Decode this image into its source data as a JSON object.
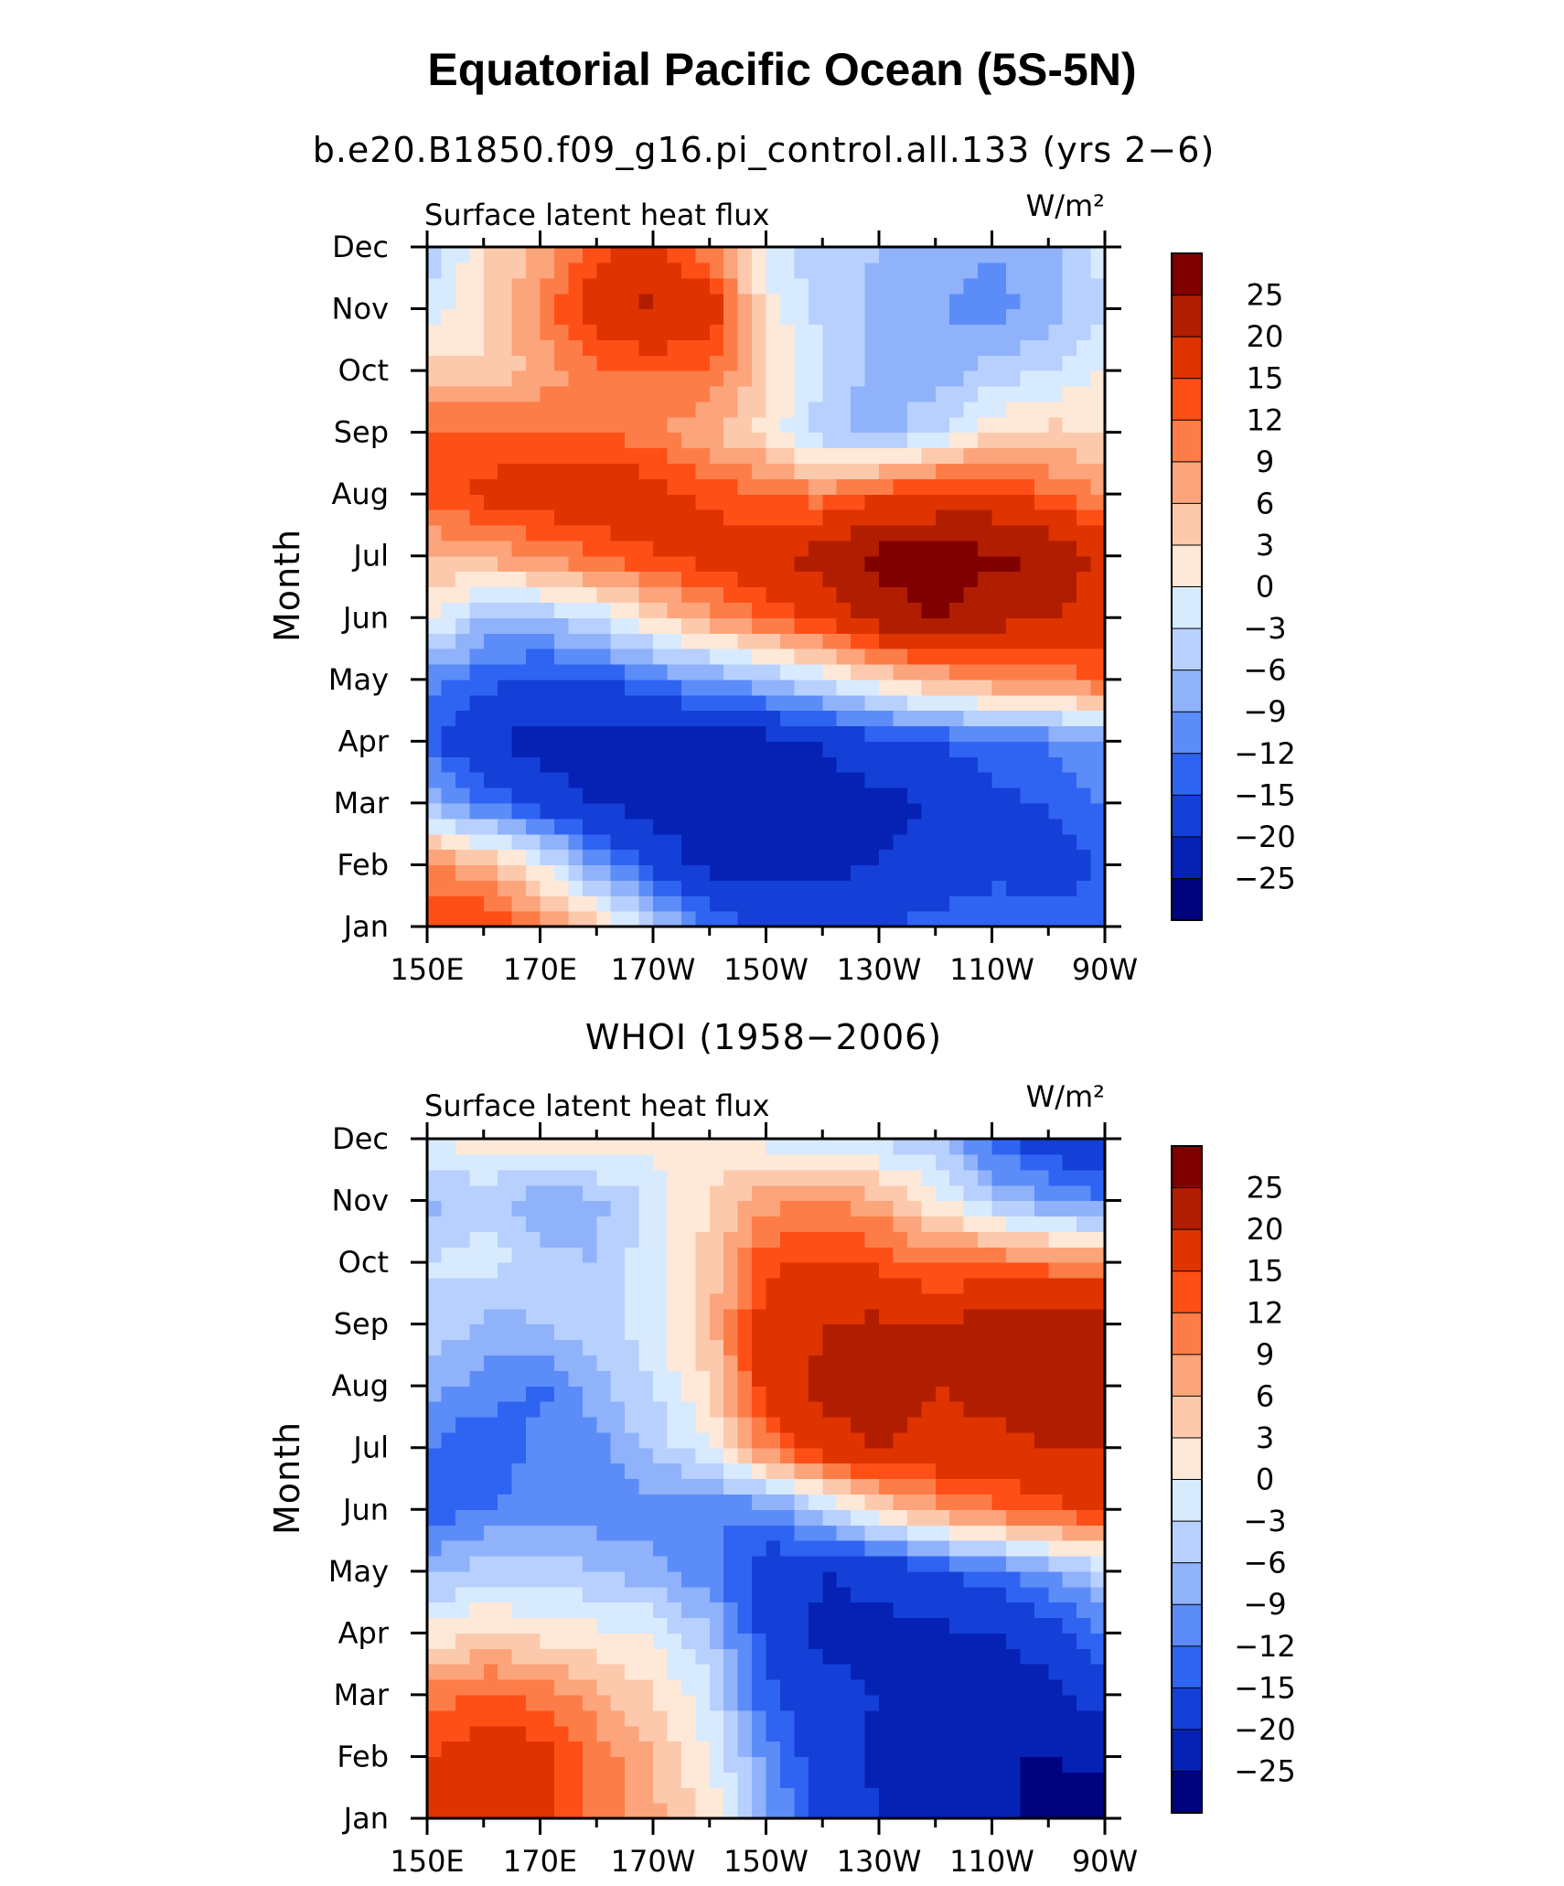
{
  "figure": {
    "title": "Equatorial Pacific Ocean (5S-5N)"
  },
  "colorbar": {
    "levels": [
      "25",
      "20",
      "15",
      "12",
      "9",
      "6",
      "3",
      "0",
      "−3",
      "−6",
      "−9",
      "−12",
      "−15",
      "−20",
      "−25"
    ],
    "colors": [
      "#800000",
      "#b11d00",
      "#df3300",
      "#fe4f17",
      "#fd7d48",
      "#fca47b",
      "#fdc9ac",
      "#fee8d8",
      "#d8eafd",
      "#b8d0fe",
      "#8fb2fb",
      "#5c8cf8",
      "#2f64f2",
      "#1440d8",
      "#0622b4",
      "#00037e"
    ]
  },
  "chart_data": [
    {
      "type": "heatmap",
      "title": "b.e20.B1850.f09_g16.pi_control.all.133 (yrs 2−6)",
      "variable": "Surface latent heat flux",
      "units": "W/m²",
      "ylabel": "Month",
      "x_ticks": [
        "150E",
        "170E",
        "170W",
        "150W",
        "130W",
        "110W",
        "90W"
      ],
      "y_ticks": [
        "Jan",
        "Feb",
        "Mar",
        "Apr",
        "May",
        "Jun",
        "Jul",
        "Aug",
        "Sep",
        "Oct",
        "Nov",
        "Dec"
      ],
      "x_lon": [
        150,
        160,
        170,
        180,
        190,
        200,
        210,
        220,
        230,
        240,
        250,
        260,
        270
      ],
      "y_month": [
        "Jan",
        "Feb",
        "Mar",
        "Apr",
        "May",
        "Jun",
        "Jul",
        "Aug",
        "Sep",
        "Oct",
        "Nov",
        "Dec"
      ],
      "values": [
        [
          14,
          16,
          10,
          4,
          -4,
          -12,
          -16,
          -18,
          -15,
          -14,
          -13,
          -14,
          -12
        ],
        [
          10,
          6,
          0,
          -9,
          -16,
          -22,
          -22,
          -21,
          -20,
          -18,
          -16,
          -17,
          -15
        ],
        [
          -6,
          -12,
          -17,
          -20,
          -22,
          -24,
          -24,
          -22,
          -21,
          -20,
          -16,
          -15,
          -12
        ],
        [
          -14,
          -20,
          -22,
          -23,
          -23,
          -23,
          -22,
          -20,
          -17,
          -15,
          -13,
          -12,
          -9
        ],
        [
          -10,
          -14,
          -16,
          -15,
          -12,
          -9,
          -6,
          -2,
          3,
          6,
          9,
          10,
          12
        ],
        [
          2,
          -6,
          -6,
          -3,
          3,
          8,
          12,
          16,
          22,
          26,
          22,
          20,
          18
        ],
        [
          5,
          7,
          9,
          12,
          15,
          17,
          19,
          22,
          27,
          27,
          26,
          25,
          18
        ],
        [
          14,
          16,
          18,
          19,
          17,
          14,
          12,
          10,
          14,
          16,
          17,
          12,
          9
        ],
        [
          13,
          13,
          12,
          12,
          10,
          6,
          2,
          -5,
          -8,
          -3,
          2,
          4,
          3
        ],
        [
          5,
          3,
          7,
          11,
          12,
          12,
          4,
          -3,
          -7,
          -8,
          -5,
          -3,
          0
        ],
        [
          -2,
          3,
          10,
          18,
          21,
          18,
          2,
          -4,
          -7,
          -9,
          -10,
          -8,
          -3
        ],
        [
          -6,
          3,
          6,
          14,
          16,
          10,
          -2,
          -5,
          -6,
          -8,
          -9,
          -7,
          -2
        ]
      ],
      "xlim": [
        "150E",
        "90W"
      ],
      "ylim": [
        "Jan",
        "Dec"
      ]
    },
    {
      "type": "heatmap",
      "title": "WHOI (1958−2006)",
      "variable": "Surface latent heat flux",
      "units": "W/m²",
      "ylabel": "Month",
      "x_ticks": [
        "150E",
        "170E",
        "170W",
        "150W",
        "130W",
        "110W",
        "90W"
      ],
      "y_ticks": [
        "Jan",
        "Feb",
        "Mar",
        "Apr",
        "May",
        "Jun",
        "Jul",
        "Aug",
        "Sep",
        "Oct",
        "Nov",
        "Dec"
      ],
      "x_lon": [
        150,
        160,
        170,
        180,
        190,
        200,
        210,
        220,
        230,
        240,
        250,
        260,
        270
      ],
      "y_month": [
        "Jan",
        "Feb",
        "Mar",
        "Apr",
        "May",
        "Jun",
        "Jul",
        "Aug",
        "Sep",
        "Oct",
        "Nov",
        "Dec"
      ],
      "values": [
        [
          16,
          17,
          16,
          11,
          7,
          2,
          -8,
          -16,
          -20,
          -22,
          -24,
          -26,
          -27
        ],
        [
          15,
          17,
          17,
          11,
          6,
          0,
          -10,
          -18,
          -21,
          -23,
          -25,
          -25,
          -24
        ],
        [
          10,
          13,
          11,
          7,
          3,
          -2,
          -14,
          -19,
          -20,
          -21,
          -22,
          -21,
          -18
        ],
        [
          1,
          3,
          2,
          1,
          0,
          -6,
          -16,
          -21,
          -21,
          -21,
          -20,
          -18,
          -12
        ],
        [
          -7,
          -4,
          -4,
          -6,
          -8,
          -11,
          -18,
          -20,
          -19,
          -16,
          -13,
          -9,
          -4
        ],
        [
          -14,
          -12,
          -10,
          -11,
          -11,
          -12,
          -11,
          -5,
          3,
          8,
          11,
          14,
          15
        ],
        [
          -12,
          -15,
          -11,
          -10,
          -5,
          0,
          10,
          18,
          20,
          19,
          19,
          20,
          20
        ],
        [
          -8,
          -10,
          -13,
          -7,
          -3,
          3,
          17,
          21,
          22,
          20,
          21,
          22,
          22
        ],
        [
          -3,
          -7,
          -6,
          -4,
          -1,
          5,
          17,
          20,
          21,
          20,
          22,
          25,
          24
        ],
        [
          -3,
          -1,
          -5,
          -6,
          -1,
          4,
          14,
          16,
          14,
          11,
          12,
          10,
          10
        ],
        [
          -7,
          -5,
          -8,
          -7,
          -2,
          3,
          8,
          9,
          7,
          1,
          -6,
          -9,
          -12
        ],
        [
          -1,
          2,
          2,
          3,
          1,
          2,
          -1,
          -3,
          -4,
          -6,
          -13,
          -18,
          -21
        ]
      ],
      "xlim": [
        "150E",
        "90W"
      ],
      "ylim": [
        "Jan",
        "Dec"
      ]
    }
  ]
}
